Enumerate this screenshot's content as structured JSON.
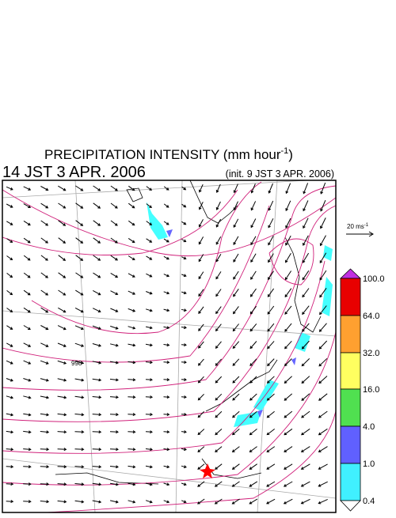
{
  "header": {
    "title_main": "PRECIPITATION INTENSITY (mm hour",
    "title_exp": "-1",
    "title_close": ")",
    "valid_time": "14 JST 3 APR. 2006",
    "init_time": "(init. 9 JST 3 APR. 2006)"
  },
  "wind_reference": {
    "label_main": "20 ms",
    "label_exp": "-1"
  },
  "colorbar": {
    "labels": [
      "0.4",
      "1.0",
      "4.0",
      "16.0",
      "32.0",
      "64.0",
      "100.0"
    ]
  },
  "map": {
    "contour_labels": [
      "998"
    ]
  }
}
